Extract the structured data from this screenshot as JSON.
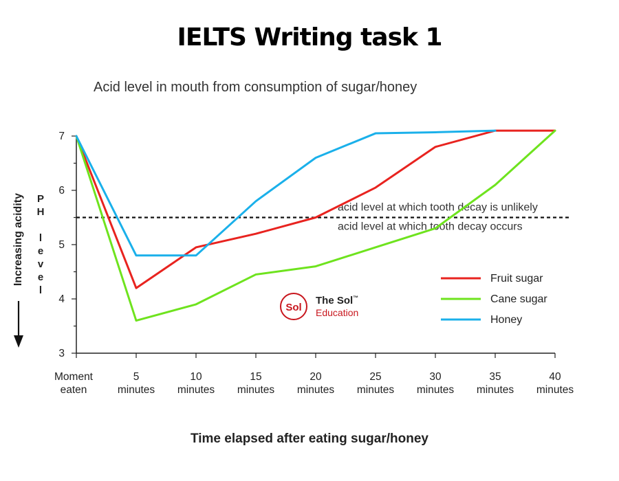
{
  "headline": "IELTS Writing task 1",
  "logo": {
    "brand_mark": "Sol",
    "name_line1": "The Sol",
    "name_line2": "Education",
    "trademark": "™"
  },
  "chart_data": {
    "type": "line",
    "title": "Acid level in mouth from consumption of sugar/honey",
    "xlabel": "Time elapsed after eating sugar/honey",
    "ylabel": "Increasing acidity",
    "ph_axis_letters": [
      "P",
      "H",
      "",
      "l",
      "e",
      "v",
      "e",
      "l"
    ],
    "x_categories": [
      [
        "Moment",
        "eaten"
      ],
      [
        "5",
        "minutes"
      ],
      [
        "10",
        "minutes"
      ],
      [
        "15",
        "minutes"
      ],
      [
        "20",
        "minutes"
      ],
      [
        "25",
        "minutes"
      ],
      [
        "30",
        "minutes"
      ],
      [
        "35",
        "minutes"
      ],
      [
        "40",
        "minutes"
      ]
    ],
    "x": [
      0,
      5,
      10,
      15,
      20,
      25,
      30,
      35,
      40
    ],
    "ylim": [
      3,
      7
    ],
    "yticks": [
      3,
      4,
      5,
      6,
      7
    ],
    "series": [
      {
        "name": "Fruit sugar",
        "color": "#e8231f",
        "values": [
          7.0,
          4.2,
          4.95,
          5.2,
          5.5,
          6.05,
          6.8,
          7.1,
          7.1
        ]
      },
      {
        "name": "Cane sugar",
        "color": "#6ee31e",
        "values": [
          7.0,
          3.6,
          3.9,
          4.45,
          4.6,
          4.95,
          5.3,
          6.1,
          7.1
        ]
      },
      {
        "name": "Honey",
        "color": "#1ab0ea",
        "values": [
          7.0,
          4.8,
          4.8,
          5.8,
          6.6,
          7.05,
          7.07,
          7.1,
          null
        ]
      }
    ],
    "threshold": {
      "value": 5.5,
      "label_above": "acid level at which tooth decay is unlikely",
      "label_below": "acid level at which tooth decay occurs"
    },
    "legend_position": "right",
    "grid": false
  }
}
